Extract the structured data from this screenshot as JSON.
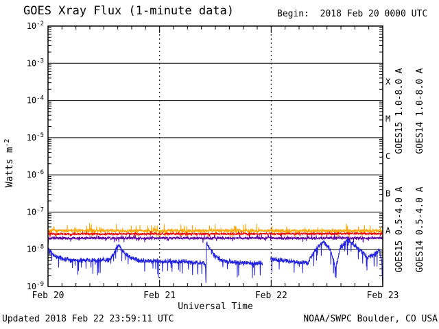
{
  "header": {
    "title": "GOES Xray Flux (1-minute data)",
    "begin": "Begin:  2018 Feb 20 0000 UTC"
  },
  "footer": {
    "updated": "Updated 2018 Feb 22 23:59:11 UTC",
    "credit": "NOAA/SWPC Boulder, CO USA"
  },
  "chart_data": {
    "type": "line",
    "title": "GOES Xray Flux (1-minute data)",
    "subtitle": "Begin:  2018 Feb 20 0000 UTC",
    "xlabel": "Universal Time",
    "ylabel": "Watts m-2",
    "ylabel_base": "Watts m",
    "ylabel_exp": "-2",
    "x_axis": {
      "unit": "days since 2018 Feb 20 0000 UTC",
      "range_days": [
        0,
        3
      ],
      "day_labels": [
        "Feb 20",
        "Feb 21",
        "Feb 22",
        "Feb 23"
      ],
      "minor_tick_hours": 3,
      "dashed_gridline_days": [
        1,
        2
      ]
    },
    "y_axis": {
      "scale": "log",
      "unit": "Watts m-2",
      "tick_exponents": [
        -2,
        -3,
        -4,
        -5,
        -6,
        -7,
        -8,
        -9
      ],
      "gridline_exponents": [
        -3,
        -4,
        -5,
        -6,
        -7,
        -8
      ],
      "range": [
        1e-09,
        0.01
      ]
    },
    "flare_classes": [
      {
        "label": "X",
        "log_center": -3.5
      },
      {
        "label": "M",
        "log_center": -4.5
      },
      {
        "label": "C",
        "log_center": -5.5
      },
      {
        "label": "B",
        "log_center": -6.5
      },
      {
        "label": "A",
        "log_center": -7.5
      }
    ],
    "legend": [
      {
        "text": "GOES15 1.0-8.0 A",
        "color": "#f00000",
        "col": 0,
        "row": 0
      },
      {
        "text": "GOES14 1.0-8.0 A",
        "color": "#ffa500",
        "col": 1,
        "row": 0
      },
      {
        "text": "GOES15 0.5-4.0 A",
        "color": "#2121de",
        "col": 0,
        "row": 1
      },
      {
        "text": "GOES14 0.5-4.0 A",
        "color": "#5c00a3",
        "col": 1,
        "row": 1
      }
    ],
    "series": [
      {
        "name": "GOES14 1.0-8.0 A",
        "satellite": "GOES14",
        "channel": "1.0-8.0 A",
        "color": "#ffa500",
        "seed": 7,
        "trend_keypoints_log10": [
          [
            0.0,
            -7.5
          ],
          [
            3.0,
            -7.5
          ]
        ],
        "noise_dex": 0.055,
        "spike_prob": 0.1,
        "spike_dex": 0.18,
        "spike_direction": 0,
        "gaps_days": []
      },
      {
        "name": "GOES14 0.5-4.0 A",
        "satellite": "GOES14",
        "channel": "0.5-4.0 A",
        "color": "#5c00a3",
        "seed": 13,
        "trend_keypoints_log10": [
          [
            0.0,
            -7.7
          ],
          [
            3.0,
            -7.7
          ]
        ],
        "noise_dex": 0.045,
        "spike_prob": 0.06,
        "spike_dex": 0.12,
        "spike_direction": 0,
        "gaps_days": []
      },
      {
        "name": "GOES15 1.0-8.0 A",
        "satellite": "GOES15",
        "channel": "1.0-8.0 A",
        "color": "#f00000",
        "seed": 3,
        "trend_keypoints_log10": [
          [
            0.0,
            -7.59
          ],
          [
            3.0,
            -7.58
          ]
        ],
        "noise_dex": 0.035,
        "spike_prob": 0.04,
        "spike_dex": 0.08,
        "spike_direction": 0,
        "gaps_days": []
      },
      {
        "name": "GOES15 0.5-4.0 A",
        "satellite": "GOES15",
        "channel": "0.5-4.0 A",
        "color": "#2121de",
        "seed": 42,
        "trend_keypoints_log10": [
          [
            0.0,
            -7.95
          ],
          [
            0.05,
            -8.18
          ],
          [
            0.2,
            -8.3
          ],
          [
            0.45,
            -8.3
          ],
          [
            0.56,
            -8.28
          ],
          [
            0.63,
            -7.88
          ],
          [
            0.7,
            -8.15
          ],
          [
            0.8,
            -8.3
          ],
          [
            1.0,
            -8.32
          ],
          [
            1.2,
            -8.33
          ],
          [
            1.38,
            -8.36
          ],
          [
            1.411,
            -8.4
          ],
          [
            1.415,
            -8.95
          ],
          [
            1.42,
            -7.82
          ],
          [
            1.45,
            -7.98
          ],
          [
            1.51,
            -8.22
          ],
          [
            1.58,
            -8.32
          ],
          [
            1.75,
            -8.36
          ],
          [
            1.92,
            -8.38
          ],
          [
            2.0,
            -8.26
          ],
          [
            2.15,
            -8.32
          ],
          [
            2.33,
            -8.36
          ],
          [
            2.4,
            -8.0
          ],
          [
            2.47,
            -7.8
          ],
          [
            2.53,
            -8.02
          ],
          [
            2.58,
            -8.5
          ],
          [
            2.62,
            -7.95
          ],
          [
            2.69,
            -7.73
          ],
          [
            2.76,
            -7.92
          ],
          [
            2.86,
            -8.22
          ],
          [
            2.93,
            -8.12
          ],
          [
            2.97,
            -8.02
          ],
          [
            2.99,
            -8.3
          ],
          [
            3.0,
            -9.0
          ]
        ],
        "noise_dex": 0.08,
        "spike_prob": 0.07,
        "spike_dex": 0.4,
        "spike_direction": -1,
        "gaps_days": [
          [
            1.925,
            1.995
          ]
        ]
      }
    ]
  }
}
